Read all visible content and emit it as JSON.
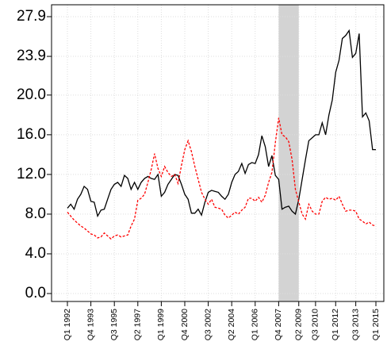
{
  "chart_data": {
    "type": "line",
    "categories": [
      "Q1 1992",
      null,
      null,
      null,
      null,
      null,
      null,
      "Q4 1993",
      null,
      null,
      null,
      null,
      null,
      null,
      "Q3 1995",
      null,
      null,
      null,
      null,
      null,
      null,
      "Q2 1997",
      null,
      null,
      null,
      null,
      null,
      null,
      "Q1 1999",
      null,
      null,
      null,
      null,
      null,
      null,
      "Q4 2000",
      null,
      null,
      null,
      null,
      null,
      null,
      "Q3 2002",
      null,
      null,
      null,
      null,
      null,
      null,
      "Q2 2004",
      null,
      null,
      null,
      null,
      null,
      null,
      "Q1 2006",
      null,
      null,
      null,
      null,
      null,
      null,
      "Q4 2007",
      null,
      null,
      null,
      null,
      null,
      "Q2 2009",
      null,
      null,
      null,
      null,
      "Q3 2010",
      null,
      null,
      null,
      null,
      null,
      "Q1 2012",
      null,
      null,
      null,
      null,
      null,
      "Q3 2013",
      null,
      null,
      null,
      null,
      null,
      "Q1 2015"
    ],
    "series": [
      {
        "color": "#000000",
        "dash": false,
        "values": [
          8.6,
          9.0,
          8.5,
          9.5,
          10.0,
          10.8,
          10.5,
          9.3,
          9.2,
          7.8,
          8.4,
          8.5,
          9.5,
          10.5,
          11.0,
          11.2,
          10.8,
          11.9,
          11.6,
          10.5,
          11.2,
          10.5,
          11.2,
          11.6,
          11.8,
          11.6,
          11.5,
          12.0,
          9.8,
          10.2,
          11.0,
          11.5,
          12.0,
          11.9,
          11.0,
          10.0,
          9.5,
          8.1,
          8.1,
          8.5,
          7.9,
          9.2,
          10.2,
          10.4,
          10.3,
          10.2,
          9.8,
          9.5,
          10.0,
          11.2,
          12.0,
          12.3,
          13.1,
          12.1,
          13.0,
          13.2,
          13.1,
          14.0,
          15.9,
          14.8,
          12.8,
          13.9,
          11.9,
          11.5,
          8.5,
          8.7,
          8.8,
          8.3,
          8.0,
          9.5,
          11.5,
          13.5,
          15.4,
          15.7,
          16.0,
          16.0,
          17.2,
          16.0,
          18.0,
          19.5,
          22.3,
          23.5,
          25.7,
          26.0,
          26.5,
          23.8,
          24.2,
          26.2,
          17.8,
          18.2,
          17.4,
          14.5,
          14.5
        ]
      },
      {
        "color": "#ff0000",
        "dash": true,
        "values": [
          8.2,
          7.8,
          7.4,
          7.1,
          6.8,
          6.6,
          6.3,
          6.0,
          5.9,
          5.6,
          5.7,
          6.1,
          5.8,
          5.5,
          5.8,
          5.9,
          5.7,
          5.8,
          5.9,
          6.8,
          7.5,
          9.4,
          9.6,
          10.0,
          11.2,
          12.5,
          14.1,
          12.6,
          11.8,
          12.8,
          12.2,
          11.8,
          12.0,
          11.1,
          12.9,
          14.5,
          15.4,
          14.3,
          12.8,
          11.5,
          10.2,
          9.5,
          9.0,
          9.5,
          8.7,
          8.6,
          8.5,
          7.9,
          7.6,
          7.9,
          8.2,
          8.0,
          8.4,
          8.7,
          9.6,
          9.6,
          9.3,
          9.7,
          9.2,
          9.9,
          11.2,
          12.2,
          15.2,
          17.7,
          16.0,
          15.8,
          15.3,
          13.5,
          10.5,
          9.2,
          8.0,
          7.5,
          9.0,
          8.3,
          8.0,
          8.0,
          9.3,
          9.7,
          9.5,
          9.6,
          9.4,
          9.8,
          9.0,
          8.3,
          8.4,
          8.4,
          8.3,
          7.5,
          7.3,
          7.0,
          7.2,
          6.9,
          6.8
        ]
      }
    ],
    "shade": [
      "Q4 2007",
      "Q2 2009"
    ],
    "ylim": [
      -0.8,
      29.1
    ],
    "yticks": [
      {
        "value": 0,
        "label": "0.0"
      },
      {
        "value": 4,
        "label": "4.0"
      },
      {
        "value": 8,
        "label": "8.0"
      },
      {
        "value": 12,
        "label": "12.0"
      },
      {
        "value": 16,
        "label": "16.0"
      },
      {
        "value": 20,
        "label": "20.0"
      },
      {
        "value": 23.9,
        "label": "23.9"
      },
      {
        "value": 27.9,
        "label": "27.9"
      }
    ],
    "grid": true
  }
}
